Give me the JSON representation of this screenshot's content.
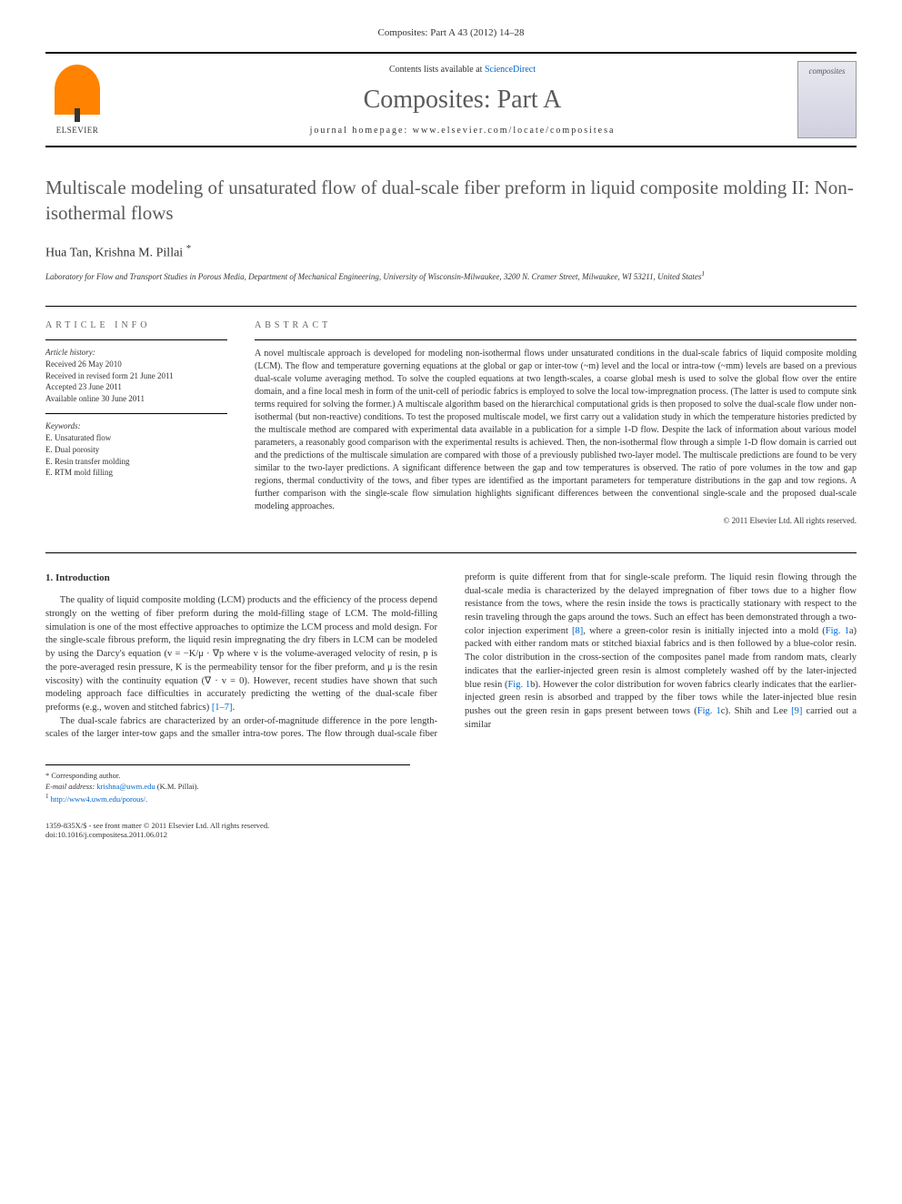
{
  "header": {
    "citation": "Composites: Part A 43 (2012) 14–28",
    "contents_text": "Contents lists available at",
    "sciencedirect": "ScienceDirect",
    "journal_name": "Composites: Part A",
    "homepage_label": "journal homepage:",
    "homepage_url": "www.elsevier.com/locate/compositesa",
    "publisher": "ELSEVIER",
    "cover_text": "composites"
  },
  "article": {
    "title": "Multiscale modeling of unsaturated flow of dual-scale fiber preform in liquid composite molding II: Non-isothermal flows",
    "authors": "Hua Tan, Krishna M. Pillai",
    "author_marker": "*",
    "affiliation": "Laboratory for Flow and Transport Studies in Porous Media, Department of Mechanical Engineering, University of Wisconsin-Milwaukee, 3200 N. Cramer Street, Milwaukee, WI 53211, United States",
    "affiliation_marker": "1"
  },
  "info": {
    "heading": "ARTICLE INFO",
    "history_label": "Article history:",
    "received": "Received 26 May 2010",
    "revised": "Received in revised form 21 June 2011",
    "accepted": "Accepted 23 June 2011",
    "online": "Available online 30 June 2011",
    "keywords_label": "Keywords:",
    "keywords": [
      "E. Unsaturated flow",
      "E. Dual porosity",
      "E. Resin transfer molding",
      "E. RTM mold filling"
    ]
  },
  "abstract": {
    "heading": "ABSTRACT",
    "text": "A novel multiscale approach is developed for modeling non-isothermal flows under unsaturated conditions in the dual-scale fabrics of liquid composite molding (LCM). The flow and temperature governing equations at the global or gap or inter-tow (~m) level and the local or intra-tow (~mm) levels are based on a previous dual-scale volume averaging method. To solve the coupled equations at two length-scales, a coarse global mesh is used to solve the global flow over the entire domain, and a fine local mesh in form of the unit-cell of periodic fabrics is employed to solve the local tow-impregnation process. (The latter is used to compute sink terms required for solving the former.) A multiscale algorithm based on the hierarchical computational grids is then proposed to solve the dual-scale flow under non-isothermal (but non-reactive) conditions. To test the proposed multiscale model, we first carry out a validation study in which the temperature histories predicted by the multiscale method are compared with experimental data available in a publication for a simple 1-D flow. Despite the lack of information about various model parameters, a reasonably good comparison with the experimental results is achieved. Then, the non-isothermal flow through a simple 1-D flow domain is carried out and the predictions of the multiscale simulation are compared with those of a previously published two-layer model. The multiscale predictions are found to be very similar to the two-layer predictions. A significant difference between the gap and tow temperatures is observed. The ratio of pore volumes in the tow and gap regions, thermal conductivity of the tows, and fiber types are identified as the important parameters for temperature distributions in the gap and tow regions. A further comparison with the single-scale flow simulation highlights significant differences between the conventional single-scale and the proposed dual-scale modeling approaches.",
    "copyright": "© 2011 Elsevier Ltd. All rights reserved."
  },
  "body": {
    "section_heading": "1. Introduction",
    "p1_a": "The quality of liquid composite molding (LCM) products and the efficiency of the process depend strongly on the wetting of fiber preform during the mold-filling stage of LCM. The mold-filling simulation is one of the most effective approaches to optimize the LCM process and mold design. For the single-scale fibrous preform, the liquid resin impregnating the dry fibers in LCM can be modeled by using the Darcy's equation (v = −K/μ · ∇p where v is the volume-averaged velocity of resin, p is the pore-averaged resin pressure, K is the permeability tensor for the fiber preform, and μ is the resin viscosity) with the continuity equation (∇ · v = 0). However, recent studies have shown that such modeling approach face difficulties in accurately predicting the wetting of the dual-scale fiber preforms (e.g., woven and stitched fabrics) ",
    "cite1": "[1–7]",
    "p1_b": ".",
    "p2_a": "The dual-scale fabrics are characterized by an order-of-magnitude difference in the pore length-scales of the larger inter-tow gaps and the smaller intra-tow pores. The flow through dual-scale fiber preform is quite different from that for single-scale preform. The liquid resin flowing through the dual-scale media is characterized by the delayed impregnation of fiber tows due to a higher flow resistance from the tows, where the resin inside the tows is practically stationary with respect to the resin traveling through the gaps around the tows. Such an effect has been demonstrated through a two-color injection experiment ",
    "cite2": "[8]",
    "p2_b": ", where a green-color resin is initially injected into a mold (",
    "fig1a": "Fig. 1",
    "p2_c": "a) packed with either random mats or stitched biaxial fabrics and is then followed by a blue-color resin. The color distribution in the cross-section of the composites panel made from random mats, clearly indicates that the earlier-injected green resin is almost completely washed off by the later-injected blue resin (",
    "fig1b": "Fig. 1",
    "p2_d": "b). However the color distribution for woven fabrics clearly indicates that the earlier-injected green resin is absorbed and trapped by the fiber tows while the later-injected blue resin pushes out the green resin in gaps present between tows (",
    "fig1c": "Fig. 1",
    "p2_e": "c). Shih and Lee ",
    "cite3": "[9]",
    "p2_f": " carried out a similar"
  },
  "footnotes": {
    "corresponding": "* Corresponding author.",
    "email_label": "E-mail address:",
    "email": "krishna@uwm.edu",
    "email_name": "(K.M. Pillai).",
    "url_marker": "1",
    "url": "http://www4.uwm.edu/porous/."
  },
  "footer": {
    "issn": "1359-835X/$ - see front matter © 2011 Elsevier Ltd. All rights reserved.",
    "doi": "doi:10.1016/j.compositesa.2011.06.012"
  },
  "colors": {
    "text": "#333333",
    "link": "#0066cc",
    "title_gray": "#5a5a5a",
    "elsevier_orange": "#ff8200",
    "background": "#ffffff"
  },
  "typography": {
    "body_fontsize": 10.5,
    "title_fontsize": 21,
    "journal_fontsize": 28,
    "abstract_fontsize": 10,
    "info_fontsize": 9,
    "footnote_fontsize": 8.5
  }
}
